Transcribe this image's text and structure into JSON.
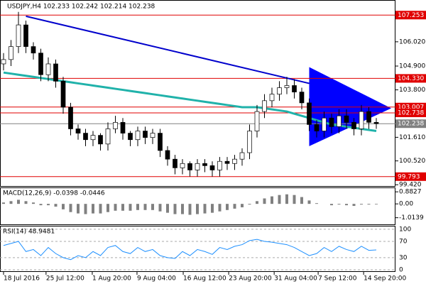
{
  "chart_data": [
    {
      "type": "candlestick",
      "title": "USDJPY,H4  102.233 102.242 102.214 102.238",
      "open": [
        105.0,
        105.2,
        105.8,
        106.8,
        105.8,
        105.5,
        104.5,
        105.0,
        104.2,
        103.0,
        102.0,
        101.8,
        101.5,
        101.7,
        101.3,
        102.0,
        102.3,
        101.8,
        101.5,
        101.9,
        101.6,
        101.8,
        101.0,
        100.6,
        100.2,
        100.4,
        100.1,
        100.4,
        100.3,
        100.1,
        100.5,
        100.4,
        100.6,
        100.9,
        101.9,
        102.8,
        103.3,
        103.6,
        103.9,
        104.0,
        103.7,
        103.2,
        102.2,
        101.9,
        102.5,
        102.1,
        102.6,
        102.3,
        102.0,
        102.8,
        102.3
      ],
      "high": [
        105.5,
        106.1,
        107.4,
        107.0,
        106.0,
        105.7,
        105.3,
        105.2,
        104.4,
        103.2,
        102.2,
        102.0,
        101.9,
        101.8,
        102.3,
        102.6,
        102.5,
        101.9,
        102.1,
        102.1,
        102.0,
        102.0,
        101.2,
        100.8,
        100.6,
        100.5,
        100.6,
        100.6,
        100.5,
        100.7,
        100.7,
        100.8,
        101.1,
        102.2,
        103.1,
        103.6,
        103.9,
        104.2,
        104.4,
        104.3,
        103.9,
        103.4,
        102.4,
        102.8,
        102.7,
        102.9,
        102.9,
        102.5,
        103.1,
        103.0,
        102.5
      ],
      "low": [
        104.7,
        104.9,
        105.5,
        105.5,
        105.2,
        104.2,
        104.2,
        103.9,
        102.7,
        101.7,
        101.5,
        101.2,
        101.2,
        101.0,
        101.0,
        101.8,
        101.5,
        101.2,
        101.2,
        101.3,
        101.3,
        100.7,
        100.3,
        99.9,
        99.9,
        99.8,
        99.8,
        100.0,
        99.8,
        99.8,
        100.1,
        100.1,
        100.3,
        100.6,
        101.6,
        102.5,
        103.0,
        103.3,
        103.6,
        103.4,
        102.9,
        101.9,
        101.6,
        101.6,
        101.8,
        101.8,
        102.0,
        101.7,
        101.7,
        102.0,
        102.0
      ],
      "close": [
        105.2,
        105.8,
        106.8,
        105.8,
        105.5,
        104.5,
        105.0,
        104.2,
        103.0,
        102.0,
        101.8,
        101.5,
        101.7,
        101.3,
        102.0,
        102.3,
        101.8,
        101.5,
        101.9,
        101.6,
        101.8,
        101.0,
        100.6,
        100.2,
        100.4,
        100.1,
        100.4,
        100.3,
        100.1,
        100.5,
        100.4,
        100.6,
        100.9,
        101.9,
        102.8,
        103.3,
        103.6,
        103.9,
        104.0,
        103.7,
        103.2,
        102.2,
        101.9,
        102.5,
        102.1,
        102.6,
        102.3,
        102.0,
        102.8,
        102.3,
        102.24
      ],
      "ma": {
        "color": "#20b2aa",
        "values": [
          104.6,
          104.55,
          104.5,
          104.45,
          104.4,
          104.35,
          104.3,
          104.25,
          104.2,
          104.15,
          104.1,
          104.05,
          104.0,
          103.95,
          103.9,
          103.85,
          103.8,
          103.75,
          103.7,
          103.65,
          103.6,
          103.55,
          103.5,
          103.45,
          103.4,
          103.35,
          103.3,
          103.25,
          103.2,
          103.15,
          103.1,
          103.05,
          103.0,
          103.0,
          103.0,
          102.95,
          102.9,
          102.85,
          102.8,
          102.7,
          102.6,
          102.5,
          102.4,
          102.3,
          102.2,
          102.15,
          102.1,
          102.05,
          102.0,
          101.95,
          101.9
        ]
      },
      "trend_line": {
        "color": "#0000cc",
        "points": [
          [
            3,
            107.2
          ],
          [
            41,
            104.1
          ]
        ]
      },
      "triangle": {
        "color": "#0000ff",
        "points": [
          [
            41,
            104.85
          ],
          [
            41,
            101.2
          ],
          [
            52,
            102.95
          ]
        ]
      },
      "levels": [
        {
          "value": 107.253,
          "color": "#e00000"
        },
        {
          "value": {
            "value": 104.33,
            "label": "104.330"
          },
          "color": "#e00000"
        },
        {
          "value": 103.007,
          "color": "#e00000"
        },
        {
          "value": 102.738,
          "color": "#e00000"
        },
        {
          "value": 102.238,
          "color": "#808080"
        },
        {
          "value": 99.793,
          "color": "#e00000"
        }
      ],
      "ylim": [
        99.36,
        107.95
      ],
      "yticks": [
        {
          "value": 106.02,
          "label": "106.020"
        },
        {
          "value": 104.9,
          "label": "104.900"
        },
        {
          "value": 103.8,
          "label": "103.800"
        },
        {
          "value": 101.61,
          "label": "101.610"
        },
        {
          "value": 100.52,
          "label": "100.520"
        },
        {
          "value": 99.42,
          "label": "99.420"
        }
      ],
      "xticks": [
        {
          "value": 0,
          "label": "18 Jul 2016"
        },
        {
          "value": 5.7,
          "label": "25 Jul 12:00"
        },
        {
          "value": 11.9,
          "label": "1 Aug 20:00"
        },
        {
          "value": 17.9,
          "label": "9 Aug 04:00"
        },
        {
          "value": 24.1,
          "label": "16 Aug 12:00"
        },
        {
          "value": 30.2,
          "label": "23 Aug 20:00"
        },
        {
          "value": 36.3,
          "label": "31 Aug 04:00"
        },
        {
          "value": 42.2,
          "label": "7 Sep 12:00"
        },
        {
          "value": 48.3,
          "label": "14 Sep 20:00"
        }
      ]
    },
    {
      "type": "bar",
      "title": "MACD(12,26,9) -0.0398 -0.0446",
      "color": "#808080",
      "values": [
        0.1,
        0.2,
        0.3,
        0.2,
        0.1,
        -0.1,
        -0.1,
        -0.2,
        -0.4,
        -0.6,
        -0.7,
        -0.75,
        -0.7,
        -0.7,
        -0.6,
        -0.5,
        -0.5,
        -0.5,
        -0.45,
        -0.45,
        -0.45,
        -0.55,
        -0.65,
        -0.75,
        -0.75,
        -0.8,
        -0.75,
        -0.7,
        -0.65,
        -0.55,
        -0.45,
        -0.35,
        -0.25,
        -0.05,
        0.2,
        0.4,
        0.55,
        0.65,
        0.7,
        0.65,
        0.5,
        0.25,
        0.05,
        0.0,
        -0.1,
        -0.05,
        -0.1,
        -0.15,
        -0.05,
        -0.05,
        -0.04
      ],
      "ylim": [
        -1.5,
        1.1
      ],
      "yticks": [
        0.8827,
        {
          "value": 0,
          "label": "0.00"
        },
        -1.0139
      ]
    },
    {
      "type": "line",
      "title": "RSI(14) 48.9481",
      "color": "#1e90ff",
      "values": [
        60,
        65,
        70,
        45,
        50,
        35,
        55,
        40,
        30,
        25,
        35,
        30,
        45,
        35,
        55,
        60,
        45,
        40,
        55,
        45,
        50,
        35,
        30,
        28,
        45,
        35,
        50,
        45,
        38,
        55,
        50,
        58,
        62,
        72,
        75,
        70,
        68,
        65,
        62,
        55,
        45,
        35,
        40,
        55,
        45,
        58,
        50,
        45,
        58,
        48,
        48.9
      ],
      "ylim": [
        -7,
        105
      ],
      "yticks": [
        100,
        70,
        30,
        0
      ]
    }
  ]
}
